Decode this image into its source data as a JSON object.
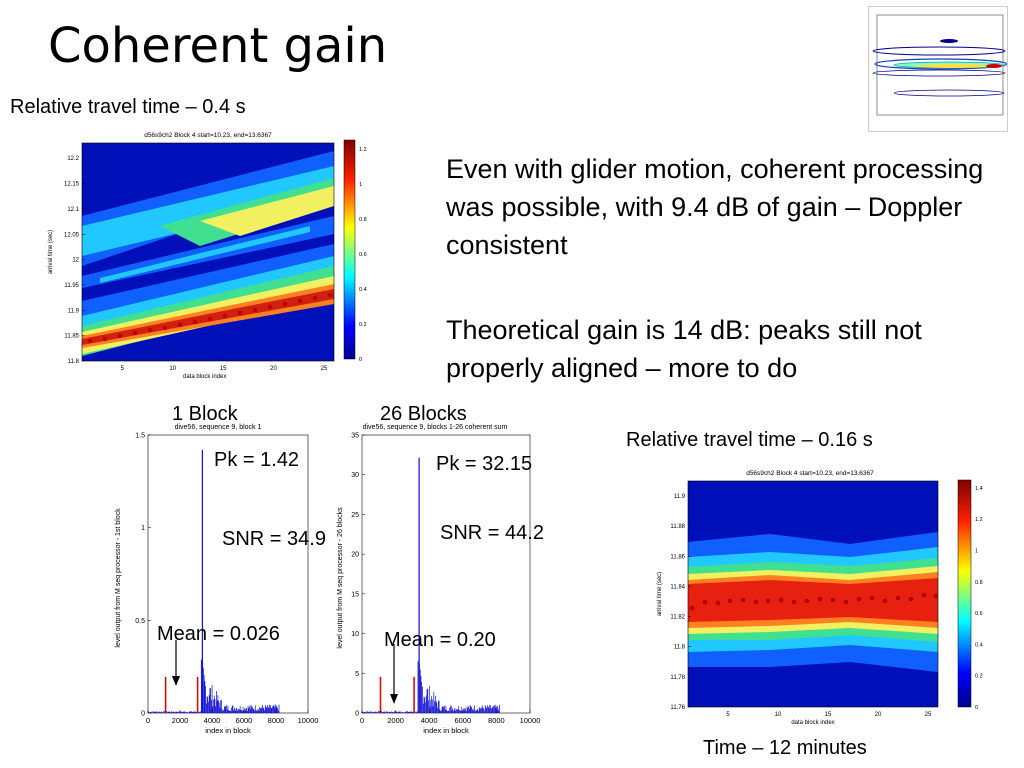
{
  "slide": {
    "title": "Coherent gain",
    "caption_top_left": "Relative travel time – 0.4 s",
    "caption_right": "Relative travel time – 0.16 s",
    "caption_bottom_right": "Time – 12 minutes",
    "paragraph_1": "Even with glider motion, coherent processing was possible, with 9.4 dB of gain – Doppler consistent",
    "paragraph_2": "Theoretical gain is 14 dB: peaks still not properly aligned – more to do",
    "label_1block": "1 Block",
    "label_26blocks": "26 Blocks",
    "pk_1": "Pk = 1.42",
    "snr_1": "SNR = 34.9",
    "mean_1": "Mean = 0.026",
    "pk_26": "Pk = 32.15",
    "snr_26": "SNR = 44.2",
    "mean_26": "Mean = 0.20"
  },
  "colors": {
    "contour_low": "#0000a8",
    "contour_mid": "#00c8ff",
    "contour_high": "#ffff40",
    "contour_peak": "#d01010",
    "stem_blue": "#1010d0",
    "marker_red": "#d01010"
  },
  "chart_data": [
    {
      "type": "heatmap",
      "title": "d56s9ch2 Block 4 start=10.23, end=13.6367",
      "xlabel": "data block index",
      "ylabel": "arrival time (sec)",
      "xlim": [
        1,
        26
      ],
      "ylim": [
        11.8,
        12.23
      ],
      "x_ticks": [
        "5",
        "10",
        "15",
        "20",
        "25"
      ],
      "y_ticks": [
        "11.8",
        "11.85",
        "11.9",
        "11.95",
        "12",
        "12.05",
        "12.1",
        "12.15",
        "12.2"
      ],
      "colorbar_ticks": [
        "0",
        "0.2",
        "0.4",
        "0.6",
        "0.8",
        "1",
        "1.2"
      ],
      "colorbar_range": [
        0,
        1.25
      ]
    },
    {
      "type": "bar",
      "title": "dive56, sequence 9, block 1",
      "xlabel": "index in block",
      "ylabel": "level output from M seq processor - 1st block",
      "xlim": [
        0,
        10000
      ],
      "ylim": [
        0,
        1.5
      ],
      "x_ticks": [
        "0",
        "2000",
        "4000",
        "6000",
        "8000",
        "10000"
      ],
      "y_ticks": [
        "0",
        "0.5",
        "1",
        "1.5"
      ],
      "peak": {
        "x": 3400,
        "y": 1.42
      },
      "markers_x": [
        1100,
        3100
      ]
    },
    {
      "type": "bar",
      "title": "dive56, sequence 9, blocks 1-26 coherent sum",
      "xlabel": "index in block",
      "ylabel": "level output from M seq processor - 26 blocks",
      "xlim": [
        0,
        10000
      ],
      "ylim": [
        0,
        35
      ],
      "x_ticks": [
        "0",
        "2000",
        "4000",
        "6000",
        "8000",
        "10000"
      ],
      "y_ticks": [
        "0",
        "5",
        "10",
        "15",
        "20",
        "25",
        "30",
        "35"
      ],
      "peak": {
        "x": 3400,
        "y": 32.15
      },
      "markers_x": [
        1100,
        3100
      ]
    },
    {
      "type": "heatmap",
      "title": "d56s9ch2 Block 4 start=10.23, end=13.6367",
      "xlabel": "data block index",
      "ylabel": "arrival time (sec)",
      "xlim": [
        1,
        26
      ],
      "ylim": [
        11.76,
        11.91
      ],
      "x_ticks": [
        "5",
        "10",
        "15",
        "20",
        "25"
      ],
      "y_ticks": [
        "11.76",
        "11.78",
        "11.8",
        "11.82",
        "11.84",
        "11.86",
        "11.88",
        "11.9"
      ],
      "colorbar_ticks": [
        "0",
        "0.2",
        "0.4",
        "0.6",
        "0.8",
        "1",
        "1.2",
        "1.4"
      ],
      "colorbar_range": [
        0,
        1.45
      ]
    }
  ]
}
